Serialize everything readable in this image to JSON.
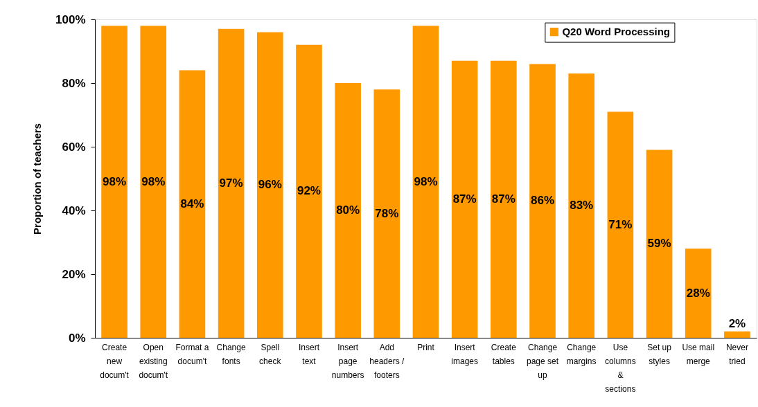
{
  "chart_data": {
    "type": "bar",
    "categories": [
      "Create new docum't",
      "Open existing docum't",
      "Format a docum't",
      "Change fonts",
      "Spell check",
      "Insert text",
      "Insert page numbers",
      "Add headers / footers",
      "Print",
      "Insert images",
      "Create tables",
      "Change page set up",
      "Change margins",
      "Use columns & sections",
      "Set up styles",
      "Use mail merge",
      "Never tried"
    ],
    "series": [
      {
        "name": "Q20 Word Processing",
        "color": "#ff9900",
        "values": [
          98,
          98,
          84,
          97,
          96,
          92,
          80,
          78,
          98,
          87,
          87,
          86,
          83,
          71,
          59,
          28,
          2
        ]
      }
    ],
    "ylabel": "Proportion of teachers",
    "ylim": [
      0,
      100
    ],
    "yticks": [
      {
        "value": 0,
        "label": "0%"
      },
      {
        "value": 20,
        "label": "20%"
      },
      {
        "value": 40,
        "label": "40%"
      },
      {
        "value": 60,
        "label": "60%"
      },
      {
        "value": 80,
        "label": "80%"
      },
      {
        "value": 100,
        "label": "100%"
      }
    ],
    "value_labels": [
      "98%",
      "98%",
      "84%",
      "97%",
      "96%",
      "92%",
      "80%",
      "78%",
      "98%",
      "87%",
      "87%",
      "86%",
      "83%",
      "71%",
      "59%",
      "28%",
      "2%"
    ],
    "legend": "top right",
    "grid": false
  }
}
